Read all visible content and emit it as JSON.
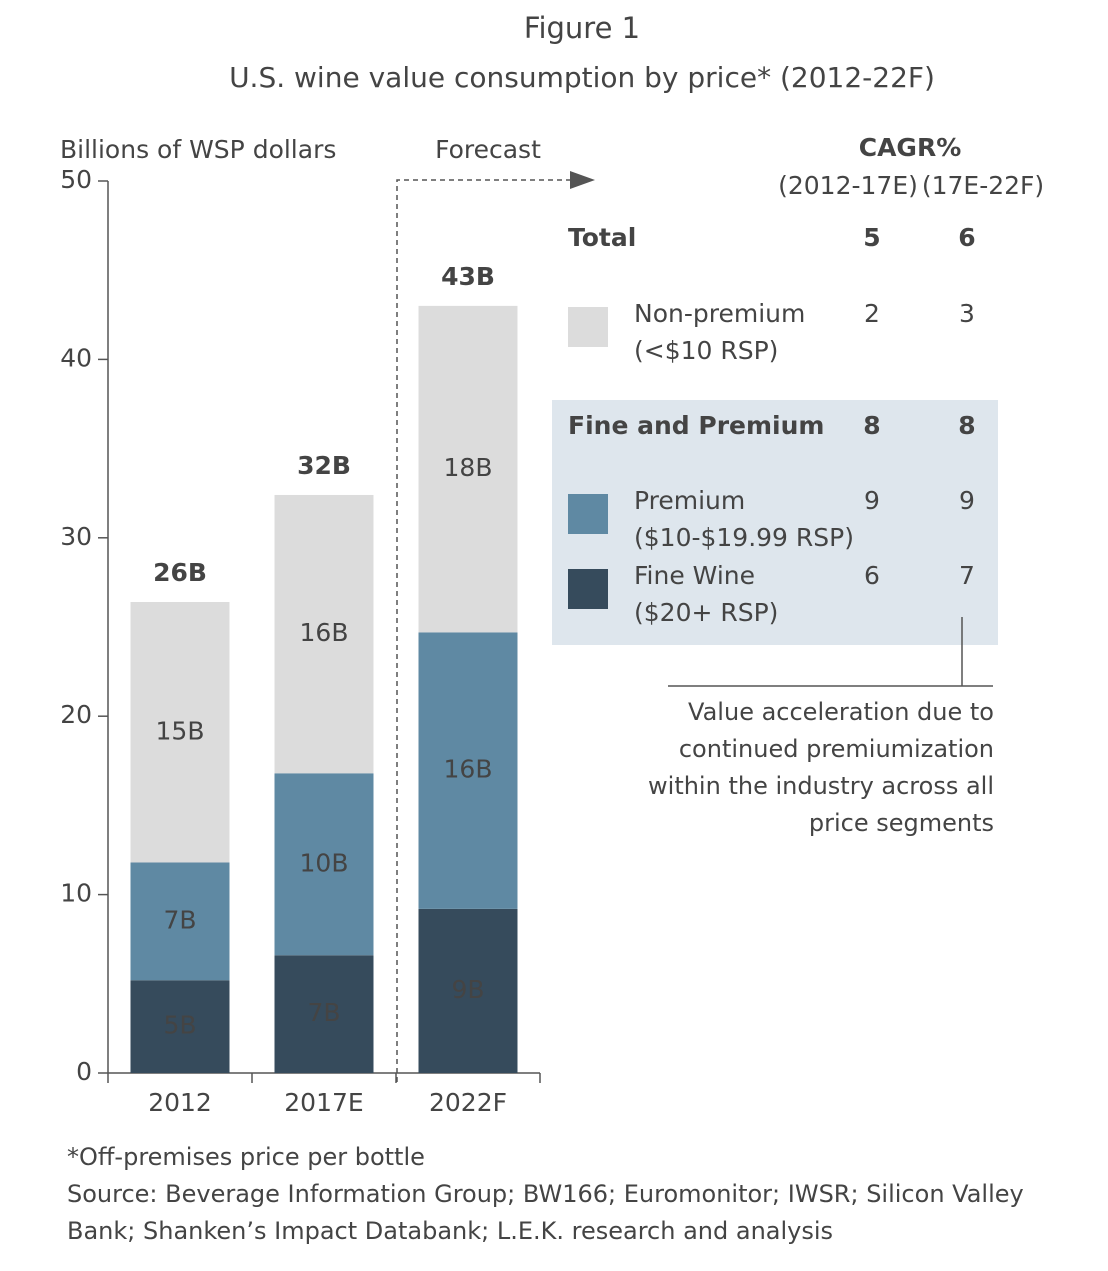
{
  "chart_data": {
    "type": "stacked_bar",
    "figure_label": "Figure 1",
    "title": "U.S. wine value consumption by price* (2012-22F)",
    "y_label": "Billions of WSP dollars",
    "forecast_label": "Forecast",
    "categories": [
      "2012",
      "2017E",
      "2022F"
    ],
    "ylim": [
      0,
      50
    ],
    "yticks": [
      0,
      10,
      20,
      30,
      40,
      50
    ],
    "series": [
      {
        "name": "Fine Wine",
        "range": "($20+ RSP)",
        "color": "#364b5c",
        "values": [
          5.2,
          6.6,
          9.2
        ],
        "value_labels": [
          "5B",
          "7B",
          "9B"
        ],
        "cagr": [
          6,
          7
        ]
      },
      {
        "name": "Premium",
        "range": "($10-$19.99 RSP)",
        "color": "#5f89a3",
        "values": [
          6.6,
          10.2,
          15.5
        ],
        "value_labels": [
          "7B",
          "10B",
          "16B"
        ],
        "cagr": [
          9,
          9
        ]
      },
      {
        "name": "Non-premium",
        "range": "(<$10 RSP)",
        "color": "#dcdcdc",
        "values": [
          14.6,
          15.6,
          18.3
        ],
        "value_labels": [
          "15B",
          "16B",
          "18B"
        ],
        "cagr": [
          2,
          3
        ]
      }
    ],
    "totals": {
      "values": [
        26.4,
        32.4,
        43.0
      ],
      "value_labels": [
        "26B",
        "32B",
        "43B"
      ]
    },
    "cagr_title": "CAGR%",
    "cagr_columns": [
      "(2012-17E)",
      "(17E-22F)"
    ],
    "groups": [
      {
        "name": "Total",
        "cagr": [
          5,
          6
        ]
      },
      {
        "name": "Fine and Premium",
        "cagr": [
          8,
          8
        ]
      }
    ],
    "annotation": "Value acceleration due to continued premiumization within the industry across all price segments",
    "footnote": "*Off-premises price per bottle",
    "source": "Source: Beverage Information Group; BW166; Euromonitor; IWSR; Silicon Valley Bank; Shanken’s Impact Databank; L.E.K. research and analysis"
  }
}
